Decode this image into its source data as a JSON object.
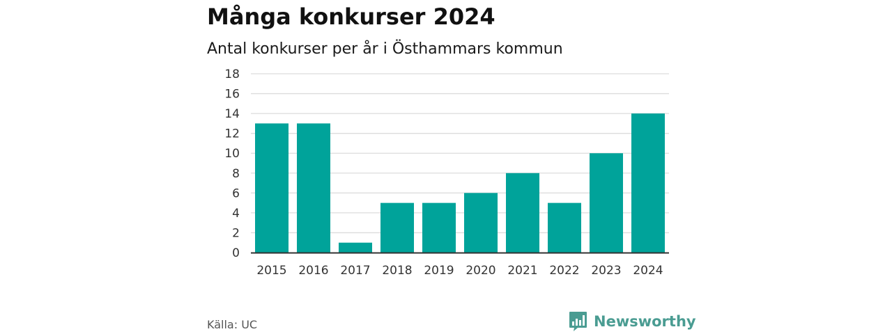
{
  "header": {
    "title": "Många konkurser 2024",
    "subtitle": "Antal konkurser per år i Östhammars kommun"
  },
  "footer": {
    "source": "Källa: UC",
    "brand": "Newsworthy"
  },
  "colors": {
    "bar": "#00a39a",
    "grid": "#dcdcdc",
    "axis": "#333333",
    "brand": "#4a9c92"
  },
  "icons": {
    "brand_logo": "newsworthy-logo-icon"
  },
  "chart_data": {
    "type": "bar",
    "title": "Många konkurser 2024",
    "subtitle": "Antal konkurser per år i Östhammars kommun",
    "xlabel": "",
    "ylabel": "",
    "categories": [
      "2015",
      "2016",
      "2017",
      "2018",
      "2019",
      "2020",
      "2021",
      "2022",
      "2023",
      "2024"
    ],
    "values": [
      13,
      13,
      1,
      5,
      5,
      6,
      8,
      5,
      10,
      14
    ],
    "ylim": [
      0,
      18
    ],
    "yticks": [
      0,
      2,
      4,
      6,
      8,
      10,
      12,
      14,
      16,
      18
    ],
    "grid": true,
    "legend": "none"
  }
}
